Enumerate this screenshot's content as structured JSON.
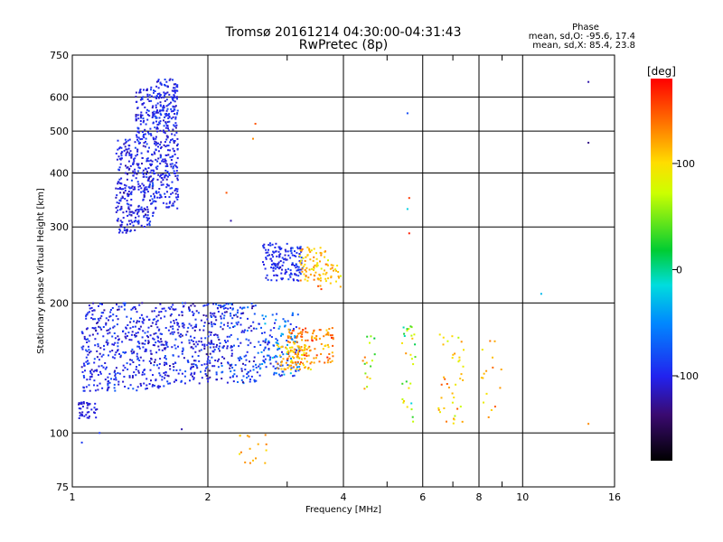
{
  "chart_data": {
    "type": "scatter",
    "title": "Tromsø 20161214 04:30:00-04:31:43",
    "subtitle": "RwPretec (8p)",
    "xlabel": "Frequency [MHz]",
    "ylabel": "Stationary phase Virtual Height [km]",
    "x_scale": "log",
    "y_scale": "log",
    "xlim": [
      1,
      16
    ],
    "ylim": [
      75,
      750
    ],
    "x_ticks": [
      1,
      2,
      4,
      6,
      8,
      10,
      16
    ],
    "x_tick_labels": [
      "1",
      "2",
      "4",
      "6",
      "8",
      "10",
      "16"
    ],
    "x_minor_ticks": [
      3,
      5,
      7,
      9
    ],
    "y_ticks": [
      75,
      100,
      200,
      300,
      400,
      500,
      600,
      750
    ],
    "y_tick_labels": [
      "75",
      "100",
      "200",
      "300",
      "400",
      "500",
      "600",
      "750"
    ],
    "grid": true,
    "phase_legend": {
      "heading": "Phase",
      "line1": "mean, sd,O: -95.6, 17.4",
      "line2": "mean, sd,X:  85.4, 23.8"
    },
    "colorbar": {
      "label": "[deg]",
      "range": [
        -180,
        180
      ],
      "ticks": [
        100,
        0,
        -100
      ],
      "tick_labels": [
        "100",
        "0",
        "-100"
      ]
    },
    "clusters": [
      {
        "x": [
          1.25,
          1.38
        ],
        "y": [
          290,
          480
        ],
        "phase": -105,
        "spread": 25,
        "n": 180
      },
      {
        "x": [
          1.38,
          1.52
        ],
        "y": [
          300,
          640
        ],
        "phase": -100,
        "spread": 25,
        "n": 250
      },
      {
        "x": [
          1.52,
          1.72
        ],
        "y": [
          330,
          660
        ],
        "phase": -100,
        "spread": 25,
        "n": 330
      },
      {
        "x": [
          1.03,
          1.14
        ],
        "y": [
          108,
          118
        ],
        "phase": -105,
        "spread": 15,
        "n": 40
      },
      {
        "x": [
          1.05,
          1.6
        ],
        "y": [
          125,
          200
        ],
        "phase": -100,
        "spread": 30,
        "n": 420
      },
      {
        "x": [
          1.6,
          2.1
        ],
        "y": [
          130,
          200
        ],
        "phase": -100,
        "spread": 35,
        "n": 260
      },
      {
        "x": [
          2.1,
          2.6
        ],
        "y": [
          130,
          200
        ],
        "phase": -90,
        "spread": 45,
        "n": 180
      },
      {
        "x": [
          2.6,
          3.2
        ],
        "y": [
          135,
          190
        ],
        "phase": -70,
        "spread": 60,
        "n": 140
      },
      {
        "x": [
          2.65,
          3.0
        ],
        "y": [
          225,
          275
        ],
        "phase": -100,
        "spread": 20,
        "n": 90
      },
      {
        "x": [
          3.0,
          3.25
        ],
        "y": [
          225,
          270
        ],
        "phase": -95,
        "spread": 25,
        "n": 60
      },
      {
        "x": [
          3.2,
          3.7
        ],
        "y": [
          225,
          270
        ],
        "phase": 110,
        "spread": 40,
        "n": 70
      },
      {
        "x": [
          3.5,
          3.95
        ],
        "y": [
          215,
          245
        ],
        "phase": 120,
        "spread": 50,
        "n": 30
      },
      {
        "x": [
          3.0,
          3.8
        ],
        "y": [
          145,
          175
        ],
        "phase": 135,
        "spread": 40,
        "n": 120
      },
      {
        "x": [
          2.85,
          3.4
        ],
        "y": [
          140,
          160
        ],
        "phase": 110,
        "spread": 40,
        "n": 70
      },
      {
        "x": [
          4.4,
          4.7
        ],
        "y": [
          125,
          170
        ],
        "phase": 80,
        "spread": 80,
        "n": 16
      },
      {
        "x": [
          5.4,
          5.8
        ],
        "y": [
          105,
          190
        ],
        "phase": 60,
        "spread": 80,
        "n": 30
      },
      {
        "x": [
          6.5,
          7.4
        ],
        "y": [
          105,
          170
        ],
        "phase": 110,
        "spread": 60,
        "n": 40
      },
      {
        "x": [
          8.0,
          9.0
        ],
        "y": [
          105,
          170
        ],
        "phase": 110,
        "spread": 60,
        "n": 16
      },
      {
        "x": [
          2.35,
          2.75
        ],
        "y": [
          84,
          100
        ],
        "phase": 120,
        "spread": 30,
        "n": 16
      }
    ],
    "points": [
      {
        "x": 2.55,
        "y": 520,
        "phase": 150
      },
      {
        "x": 2.52,
        "y": 480,
        "phase": 130
      },
      {
        "x": 5.55,
        "y": 550,
        "phase": -80
      },
      {
        "x": 5.6,
        "y": 350,
        "phase": 160
      },
      {
        "x": 5.55,
        "y": 330,
        "phase": -20
      },
      {
        "x": 5.6,
        "y": 290,
        "phase": 170
      },
      {
        "x": 14.0,
        "y": 650,
        "phase": -120
      },
      {
        "x": 14.0,
        "y": 470,
        "phase": -130
      },
      {
        "x": 14.0,
        "y": 105,
        "phase": 130
      },
      {
        "x": 11.0,
        "y": 210,
        "phase": -30
      },
      {
        "x": 2.2,
        "y": 360,
        "phase": 150
      },
      {
        "x": 2.25,
        "y": 310,
        "phase": -120
      },
      {
        "x": 1.15,
        "y": 100,
        "phase": -90
      },
      {
        "x": 1.75,
        "y": 102,
        "phase": -120
      },
      {
        "x": 1.05,
        "y": 95,
        "phase": -90
      }
    ]
  }
}
